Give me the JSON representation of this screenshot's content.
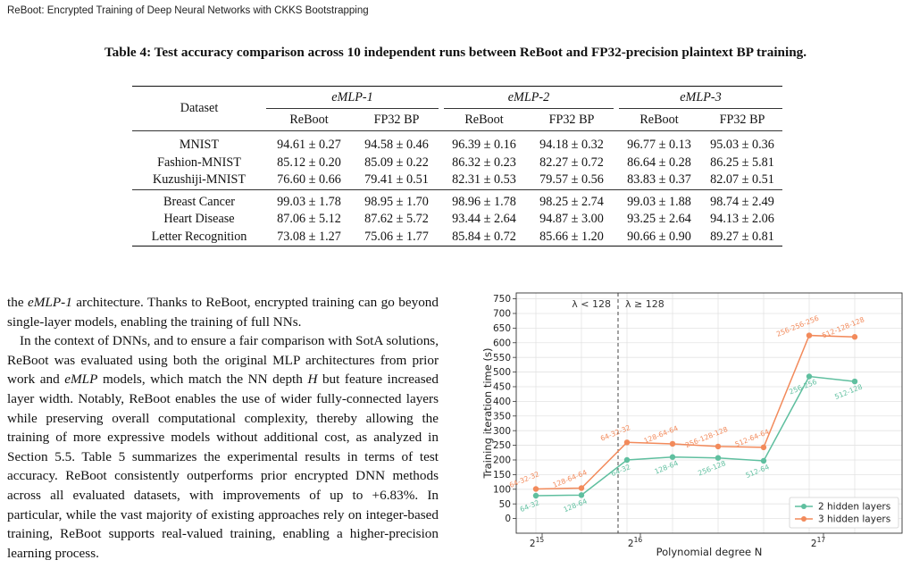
{
  "header": {
    "running_title": "ReBoot: Encrypted Training of Deep Neural Networks with CKKS Bootstrapping"
  },
  "table": {
    "caption": "Table 4: Test accuracy comparison across 10 independent runs between ReBoot and FP32-precision plaintext BP training.",
    "dataset_header": "Dataset",
    "groups": [
      "eMLP-1",
      "eMLP-2",
      "eMLP-3"
    ],
    "subheaders": [
      "ReBoot",
      "FP32 BP",
      "ReBoot",
      "FP32 BP",
      "ReBoot",
      "FP32 BP"
    ],
    "block1": [
      {
        "dataset": "MNIST",
        "values": [
          "94.61 ± 0.27",
          "94.58 ± 0.46",
          "96.39 ± 0.16",
          "94.18 ± 0.32",
          "96.77 ± 0.13",
          "95.03 ± 0.36"
        ]
      },
      {
        "dataset": "Fashion-MNIST",
        "values": [
          "85.12 ± 0.20",
          "85.09 ± 0.22",
          "86.32 ± 0.23",
          "82.27 ± 0.72",
          "86.64 ± 0.28",
          "86.25 ± 5.81"
        ]
      },
      {
        "dataset": "Kuzushiji-MNIST",
        "values": [
          "76.60 ± 0.66",
          "79.41 ± 0.51",
          "82.31 ± 0.53",
          "79.57 ± 0.56",
          "83.83 ± 0.37",
          "82.07 ± 0.51"
        ]
      }
    ],
    "block2": [
      {
        "dataset": "Breast Cancer",
        "values": [
          "99.03 ± 1.78",
          "98.95 ± 1.70",
          "98.96 ± 1.78",
          "98.25 ± 2.74",
          "99.03 ± 1.88",
          "98.74 ± 2.49"
        ]
      },
      {
        "dataset": "Heart Disease",
        "values": [
          "87.06 ± 5.12",
          "87.62 ± 5.72",
          "93.44 ± 2.64",
          "94.87 ± 3.00",
          "93.25 ± 2.64",
          "94.13 ± 2.06"
        ]
      },
      {
        "dataset": "Letter Recognition",
        "values": [
          "73.08 ± 1.27",
          "75.06 ± 1.77",
          "85.84 ± 0.72",
          "85.66 ± 1.20",
          "90.66 ± 0.90",
          "89.27 ± 0.81"
        ]
      }
    ]
  },
  "body": {
    "p1_a": "the ",
    "p1_em": "eMLP-1",
    "p1_b": " architecture. Thanks to ReBoot, encrypted training can go beyond single-layer models, enabling the training of full NNs.",
    "p2_a": "In the context of DNNs, and to ensure a fair comparison with SotA solutions, ReBoot was evaluated using both the original MLP architectures from prior work and ",
    "p2_em": "eMLP",
    "p2_b": " models, which match the NN depth ",
    "p2_h": "H",
    "p2_c": " but feature increased layer width. Notably, ReBoot enables the use of wider fully-connected layers while preserving overall computational complexity, thereby allowing the training of more expressive models without additional cost, as analyzed in Section 5.5. Table 5 summarizes the experimental results in terms of test accuracy. ReBoot consistently outperforms prior encrypted DNN methods across all evaluated datasets, with improvements of up to +6.83%. In particular, while the vast majority of existing approaches rely on integer-based training, ReBoot supports real-valued training, enabling a higher-precision learning process."
  },
  "chart_data": {
    "type": "line",
    "xlabel": "Polynomial degree N",
    "ylabel": "Training iteration time (s)",
    "ylim": [
      -50,
      770
    ],
    "yticks": [
      0,
      50,
      100,
      150,
      200,
      250,
      300,
      350,
      400,
      450,
      500,
      550,
      600,
      650,
      700,
      750
    ],
    "xtick_labels": [
      "2^15",
      "2^16",
      "2^17"
    ],
    "grid": true,
    "legend_position": "bottom-right",
    "region_labels": [
      "λ < 128",
      "λ ≥ 128"
    ],
    "series": [
      {
        "name": "2 hidden layers",
        "color": "#5fbf9f",
        "points": [
          {
            "label": "64-32",
            "y": 78
          },
          {
            "label": "128-64",
            "y": 80
          },
          {
            "label": "64-32",
            "y": 200
          },
          {
            "label": "128-64",
            "y": 210
          },
          {
            "label": "256-128",
            "y": 207
          },
          {
            "label": "512-64",
            "y": 197
          },
          {
            "label": "256-256",
            "y": 485
          },
          {
            "label": "512-128",
            "y": 468
          }
        ]
      },
      {
        "name": "3 hidden layers",
        "color": "#f28a5b",
        "points": [
          {
            "label": "64-32-32",
            "y": 101
          },
          {
            "label": "128-64-64",
            "y": 104
          },
          {
            "label": "64-32-32",
            "y": 260
          },
          {
            "label": "128-64-64",
            "y": 255
          },
          {
            "label": "256-128-128",
            "y": 246
          },
          {
            "label": "512-64-64",
            "y": 243
          },
          {
            "label": "256-256-256",
            "y": 625
          },
          {
            "label": "512-128-128",
            "y": 620
          }
        ]
      }
    ]
  }
}
